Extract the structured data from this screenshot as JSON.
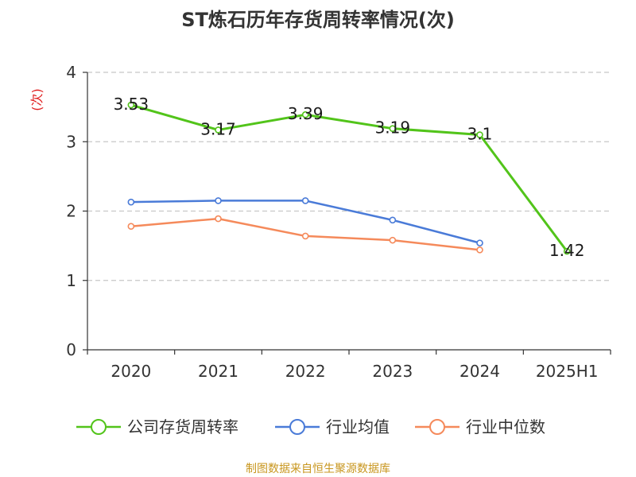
{
  "chart_data": {
    "type": "line",
    "title": "ST炼石历年存货周转率情况(次)",
    "ylabel": "(次)",
    "xlabel": "",
    "categories": [
      "2020",
      "2021",
      "2022",
      "2023",
      "2024",
      "2025H1"
    ],
    "ylim": [
      0,
      4
    ],
    "yticks": [
      0,
      1,
      2,
      3,
      4
    ],
    "grid": true,
    "legend_position": "bottom",
    "series": [
      {
        "name": "公司存货周转率",
        "color": "#52c41a",
        "values": [
          3.53,
          3.17,
          3.39,
          3.19,
          3.1,
          1.42
        ],
        "labels": [
          "3.53",
          "3.17",
          "3.39",
          "3.19",
          "3.1",
          "1.42"
        ]
      },
      {
        "name": "行业均值",
        "color": "#4a7bd8",
        "values": [
          2.13,
          2.15,
          2.15,
          1.87,
          1.54,
          null
        ]
      },
      {
        "name": "行业中位数",
        "color": "#f58a5b",
        "values": [
          1.78,
          1.89,
          1.64,
          1.58,
          1.44,
          null
        ]
      }
    ]
  },
  "source": {
    "text": "制图数据来自恒生聚源数据库",
    "color": "#c8961e"
  },
  "ylabel_color": "#e02020"
}
